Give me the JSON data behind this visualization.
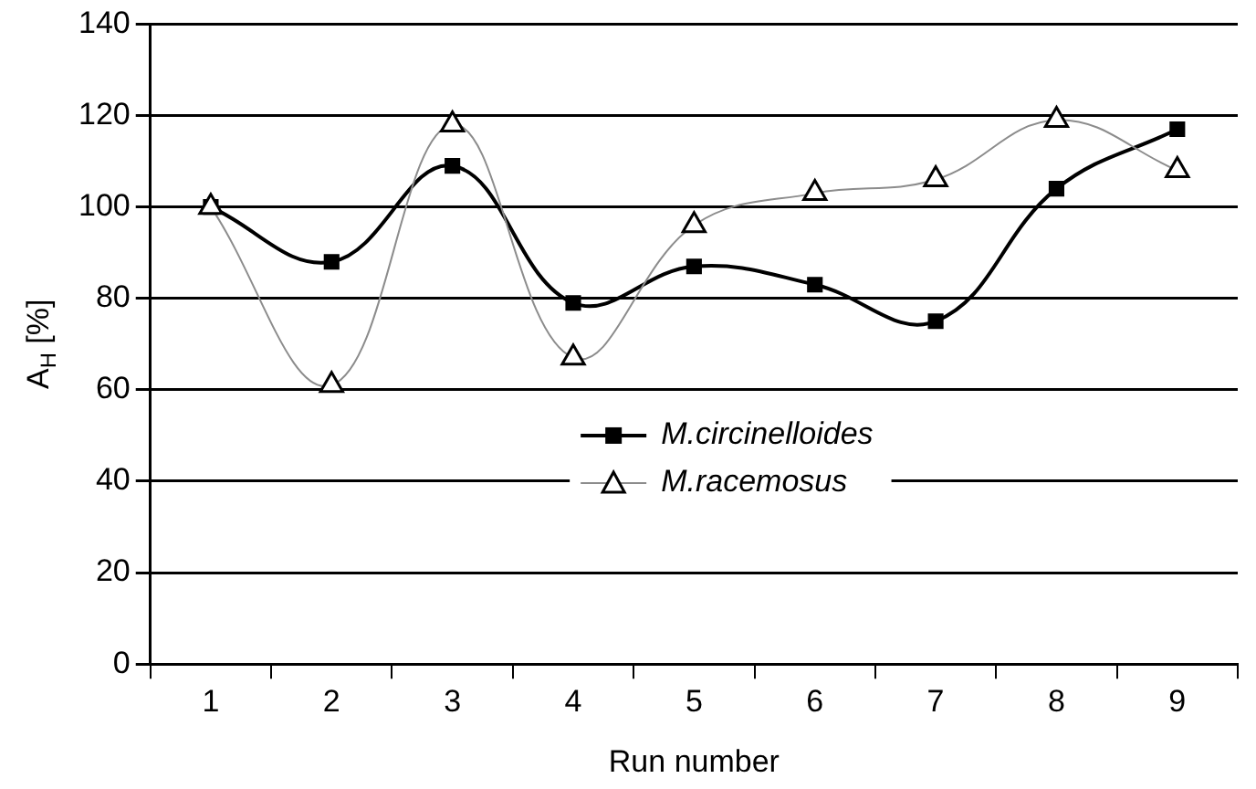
{
  "chart_data": {
    "type": "line",
    "xlabel": "Run number",
    "ylabel": "A$_{H}$ [%]",
    "categories": [
      "1",
      "2",
      "3",
      "4",
      "5",
      "6",
      "7",
      "8",
      "9"
    ],
    "series": [
      {
        "name": "M.circinelloides",
        "color": "#000000",
        "marker": "square",
        "values": [
          100,
          88,
          109,
          79,
          87,
          83,
          75,
          104,
          117
        ]
      },
      {
        "name": "M.racemosus",
        "color": "#000000",
        "marker": "triangle",
        "values": [
          100,
          61,
          118,
          67,
          96,
          103,
          106,
          119,
          108
        ]
      }
    ],
    "ylim": [
      0,
      140
    ],
    "yticks": [
      0,
      20,
      40,
      60,
      80,
      100,
      120,
      140
    ],
    "grid": "y",
    "legend": "center",
    "line_style": "solid"
  }
}
